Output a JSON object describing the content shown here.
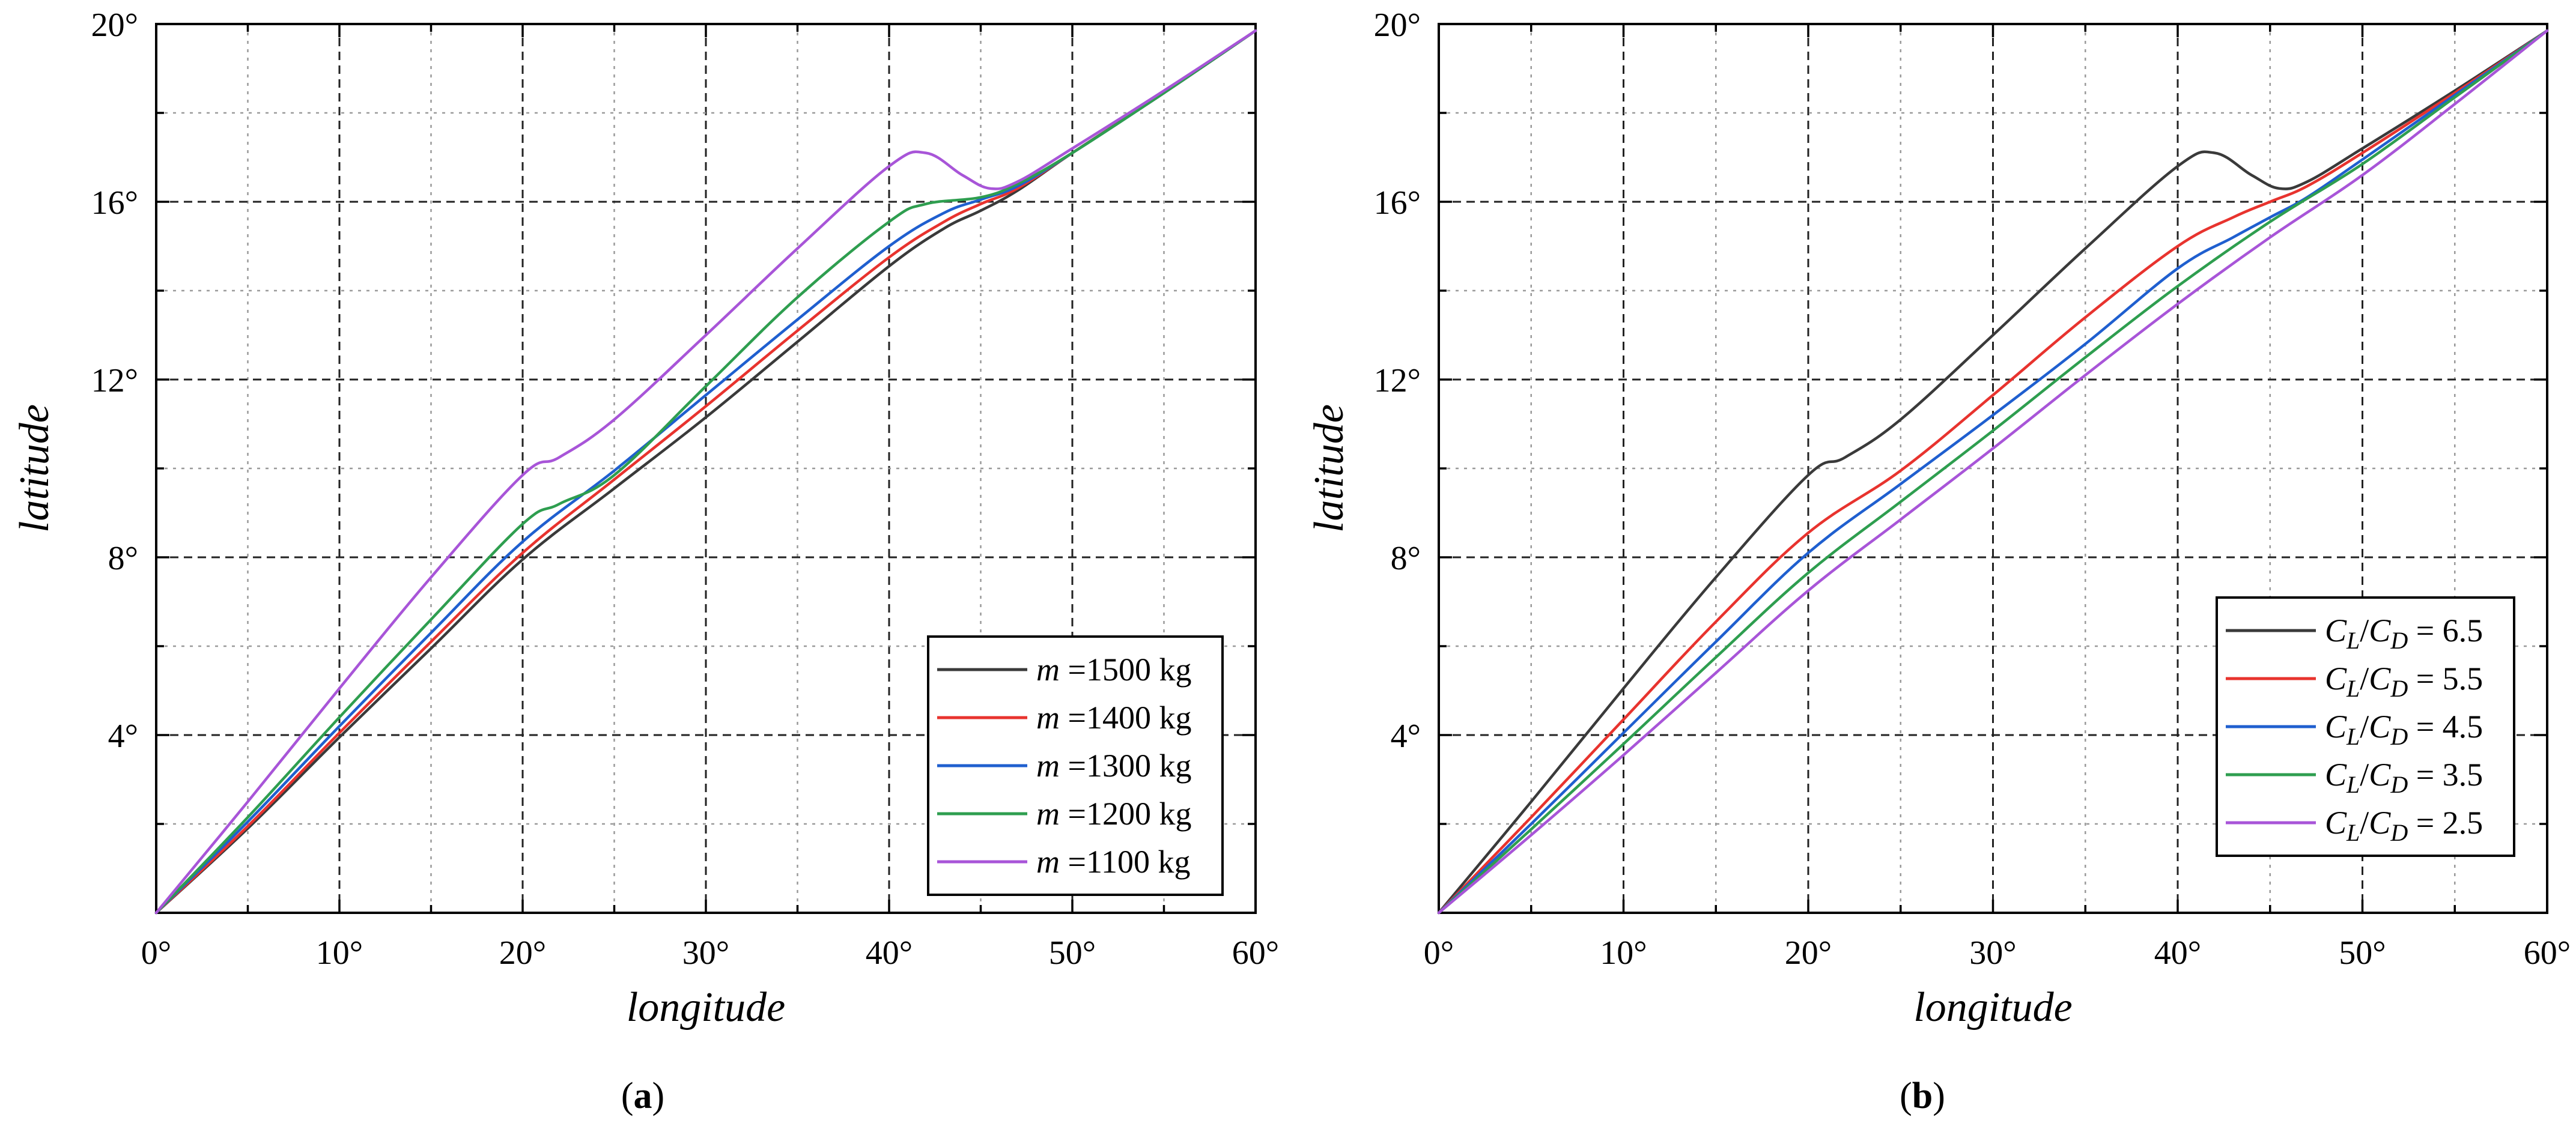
{
  "chart_data": [
    {
      "type": "line",
      "panel_label_prefix": "(",
      "panel_letter": "a",
      "panel_label_suffix": ")",
      "xlabel": "longitude",
      "ylabel": "latitude",
      "xlim": [
        0,
        60
      ],
      "ylim": [
        0,
        20
      ],
      "xticks": [
        0,
        10,
        20,
        30,
        40,
        50,
        60
      ],
      "xtick_labels": [
        "0°",
        "10°",
        "20°",
        "30°",
        "40°",
        "50°",
        "60°"
      ],
      "yticks": [
        4,
        8,
        12,
        16,
        20
      ],
      "ytick_labels": [
        "4°",
        "8°",
        "12°",
        "16°",
        "20°"
      ],
      "grid": true,
      "legend_position": "bottom-right",
      "series": [
        {
          "name": "m =1500 kg",
          "prefix": "m",
          "suffix": " =1500 kg",
          "color": "#3a3a3a",
          "x": [
            0,
            5,
            10,
            15,
            20,
            25,
            30,
            35,
            40,
            43,
            45,
            47,
            50,
            55,
            60
          ],
          "y": [
            0,
            1.9,
            3.95,
            5.95,
            7.95,
            9.55,
            11.15,
            12.85,
            14.55,
            15.4,
            15.8,
            16.25,
            17.1,
            18.45,
            19.85
          ]
        },
        {
          "name": "m =1400 kg",
          "prefix": "m",
          "suffix": " =1400 kg",
          "color": "#e8332e",
          "x": [
            0,
            5,
            10,
            15,
            20,
            25,
            30,
            35,
            40,
            43,
            45,
            47,
            50,
            55,
            60
          ],
          "y": [
            0,
            1.95,
            4.05,
            6.1,
            8.1,
            9.75,
            11.4,
            13.1,
            14.75,
            15.55,
            15.95,
            16.3,
            17.1,
            18.45,
            19.85
          ]
        },
        {
          "name": "m =1300 kg",
          "prefix": "m",
          "suffix": " =1300 kg",
          "color": "#1f5fcf",
          "x": [
            0,
            5,
            10,
            15,
            20,
            25,
            30,
            35,
            40,
            43,
            45,
            47,
            50,
            55,
            60
          ],
          "y": [
            0,
            2.05,
            4.2,
            6.3,
            8.35,
            9.95,
            11.65,
            13.35,
            15.0,
            15.75,
            16.05,
            16.35,
            17.1,
            18.45,
            19.85
          ]
        },
        {
          "name": "m =1200 kg",
          "prefix": "m",
          "suffix": " =1200 kg",
          "color": "#2e9e4f",
          "x": [
            0,
            5,
            10,
            15,
            20,
            22,
            25,
            30,
            35,
            40,
            42,
            45,
            47,
            50,
            55,
            60
          ],
          "y": [
            0,
            2.15,
            4.4,
            6.6,
            8.75,
            9.2,
            9.85,
            11.85,
            13.85,
            15.55,
            15.95,
            16.1,
            16.4,
            17.1,
            18.45,
            19.85
          ]
        },
        {
          "name": "m =1100 kg",
          "prefix": "m",
          "suffix": " =1100 kg",
          "color": "#a855d8",
          "x": [
            0,
            5,
            10,
            15,
            20,
            22,
            25,
            30,
            35,
            40,
            42,
            44,
            45.5,
            47,
            50,
            55,
            60
          ],
          "y": [
            0,
            2.5,
            5.05,
            7.55,
            9.85,
            10.25,
            11.1,
            13.0,
            14.95,
            16.8,
            17.1,
            16.6,
            16.3,
            16.45,
            17.2,
            18.5,
            19.85
          ]
        }
      ]
    },
    {
      "type": "line",
      "panel_label_prefix": "(",
      "panel_letter": "b",
      "panel_label_suffix": ")",
      "xlabel": "longitude",
      "ylabel": "latitude",
      "xlim": [
        0,
        60
      ],
      "ylim": [
        0,
        20
      ],
      "xticks": [
        0,
        10,
        20,
        30,
        40,
        50,
        60
      ],
      "xtick_labels": [
        "0°",
        "10°",
        "20°",
        "30°",
        "40°",
        "50°",
        "60°"
      ],
      "yticks": [
        4,
        8,
        12,
        16,
        20
      ],
      "ytick_labels": [
        "4°",
        "8°",
        "12°",
        "16°",
        "20°"
      ],
      "grid": true,
      "legend_position": "bottom-right",
      "series": [
        {
          "name": "CL/CD = 6.5",
          "ratio_label": " = 6.5",
          "color": "#3a3a3a",
          "x": [
            0,
            5,
            10,
            15,
            20,
            22,
            25,
            30,
            35,
            40,
            42,
            44,
            45.5,
            47,
            50,
            55,
            60
          ],
          "y": [
            0,
            2.5,
            5.05,
            7.55,
            9.85,
            10.25,
            11.1,
            13.0,
            14.95,
            16.8,
            17.1,
            16.6,
            16.3,
            16.45,
            17.2,
            18.5,
            19.85
          ]
        },
        {
          "name": "CL/CD = 5.5",
          "ratio_label": " = 5.5",
          "color": "#e8332e",
          "x": [
            0,
            5,
            10,
            15,
            20,
            25,
            30,
            35,
            40,
            43,
            45,
            47,
            50,
            55,
            60
          ],
          "y": [
            0,
            2.15,
            4.35,
            6.55,
            8.55,
            9.95,
            11.65,
            13.4,
            15.0,
            15.65,
            16.0,
            16.35,
            17.1,
            18.45,
            19.85
          ]
        },
        {
          "name": "CL/CD = 4.5",
          "ratio_label": " = 4.5",
          "color": "#1f5fcf",
          "x": [
            0,
            5,
            10,
            15,
            20,
            25,
            30,
            35,
            40,
            43,
            45,
            47,
            50,
            55,
            60
          ],
          "y": [
            0,
            2.0,
            4.05,
            6.1,
            8.1,
            9.65,
            11.2,
            12.8,
            14.5,
            15.2,
            15.65,
            16.1,
            16.95,
            18.4,
            19.85
          ]
        },
        {
          "name": "CL/CD = 3.5",
          "ratio_label": " = 3.5",
          "color": "#2e9e4f",
          "x": [
            0,
            5,
            10,
            15,
            20,
            25,
            30,
            35,
            40,
            45,
            50,
            55,
            60
          ],
          "y": [
            0,
            1.88,
            3.8,
            5.75,
            7.65,
            9.25,
            10.85,
            12.5,
            14.1,
            15.55,
            16.85,
            18.35,
            19.85
          ]
        },
        {
          "name": "CL/CD = 2.5",
          "ratio_label": " = 2.5",
          "color": "#a855d8",
          "x": [
            0,
            5,
            10,
            15,
            20,
            25,
            30,
            35,
            40,
            45,
            50,
            55,
            60
          ],
          "y": [
            0,
            1.75,
            3.55,
            5.4,
            7.25,
            8.85,
            10.45,
            12.1,
            13.7,
            15.2,
            16.6,
            18.2,
            19.85
          ]
        }
      ]
    }
  ]
}
